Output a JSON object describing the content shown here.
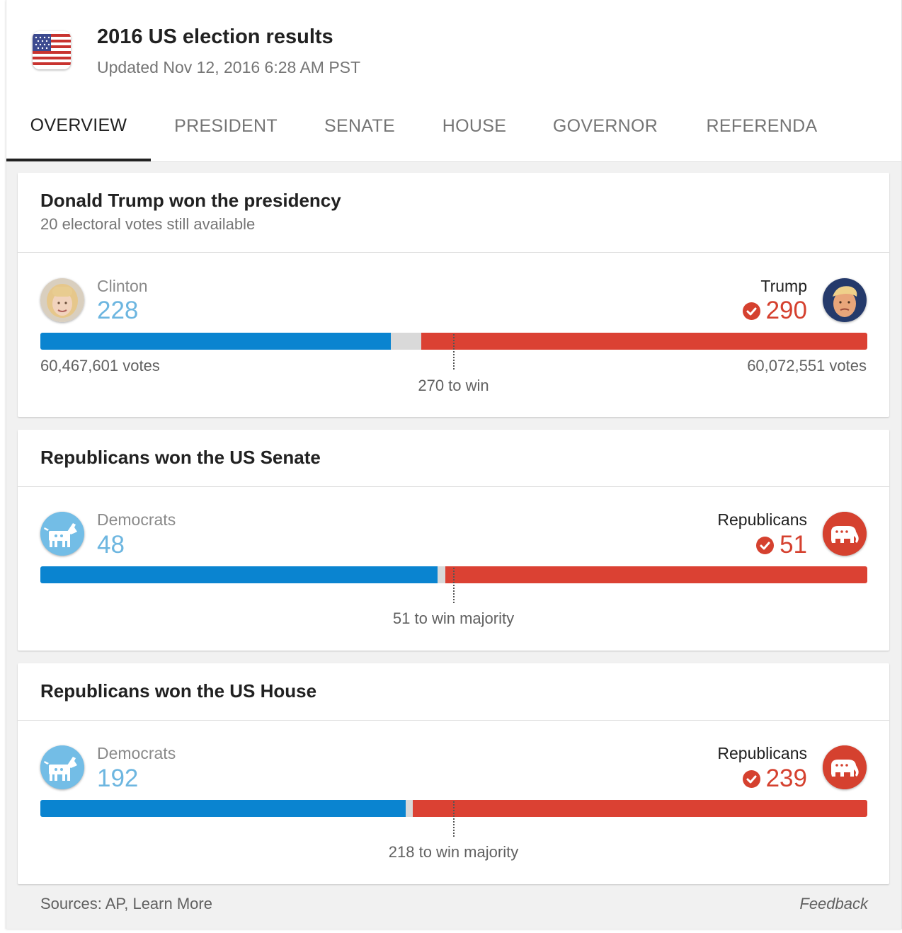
{
  "header": {
    "title": "2016 US election results",
    "updated": "Updated Nov 12, 2016 6:28 AM PST",
    "flag_icon": "us-flag-icon"
  },
  "tabs": [
    {
      "label": "OVERVIEW",
      "active": true
    },
    {
      "label": "PRESIDENT",
      "active": false
    },
    {
      "label": "SENATE",
      "active": false
    },
    {
      "label": "HOUSE",
      "active": false
    },
    {
      "label": "GOVERNOR",
      "active": false
    },
    {
      "label": "REFERENDA",
      "active": false
    }
  ],
  "colors": {
    "dem_bar": "#0a84d0",
    "dem_text": "#6db6e0",
    "rep": "#db4133",
    "undecided": "#d9d9d9"
  },
  "president": {
    "title": "Donald Trump won the presidency",
    "subtitle": "20 electoral votes still available",
    "left_name": "Clinton",
    "left_value": "228",
    "left_votes": "60,467,601 votes",
    "right_name": "Trump",
    "right_value": "290",
    "right_votes": "60,072,551 votes",
    "to_win": "270 to win",
    "total": 538,
    "dem": 228,
    "rep": 290,
    "threshold": 270
  },
  "senate": {
    "title": "Republicans won the US Senate",
    "left_name": "Democrats",
    "left_value": "48",
    "right_name": "Republicans",
    "right_value": "51",
    "to_win": "51 to win majority",
    "total": 100,
    "dem": 48,
    "rep": 51,
    "threshold": 51
  },
  "house": {
    "title": "Republicans won the US House",
    "left_name": "Democrats",
    "left_value": "192",
    "right_name": "Republicans",
    "right_value": "239",
    "to_win": "218 to win majority",
    "total": 435,
    "dem": 192,
    "rep": 239,
    "threshold": 218
  },
  "footer": {
    "sources": "Sources: AP, Learn More",
    "feedback": "Feedback"
  }
}
